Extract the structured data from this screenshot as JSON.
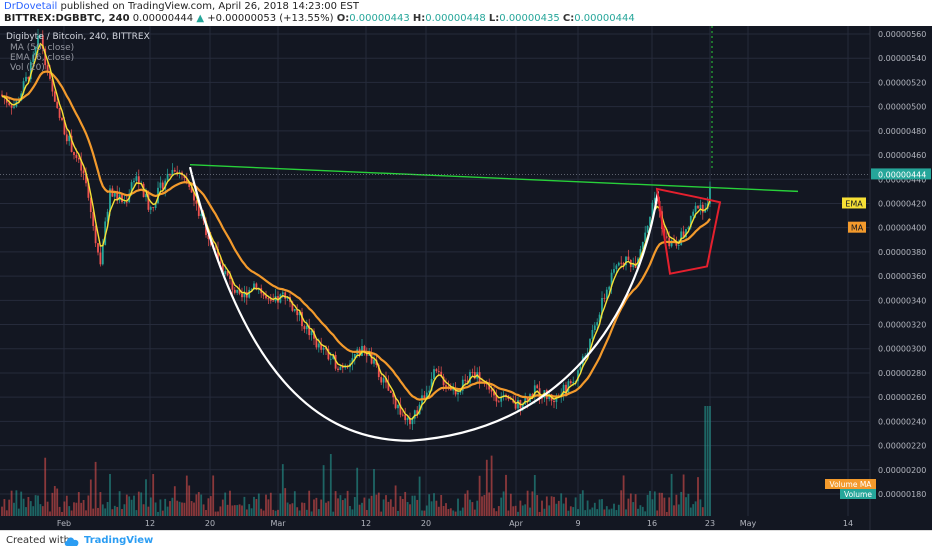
{
  "header": {
    "author": "DrDovetail",
    "published": "published on TradingView.com, April 26, 2018 14:23:00 EST",
    "symbol": "BITTREX:DGBBTC, 240",
    "last": "0.00000444",
    "change": "+0.00000053 (+13.55%)",
    "o_label": "O:",
    "o": "0.00000443",
    "h_label": "H:",
    "h": "0.00000448",
    "l_label": "L:",
    "l": "0.00000435",
    "c_label": "C:",
    "c": "0.00000444"
  },
  "legend": {
    "title": "Digibyte / Bitcoin, 240, BITTREX",
    "ma": "MA (50, close)",
    "ema": "EMA (6, close)",
    "vol": "Vol (20)"
  },
  "footer": {
    "created_with": "Created with",
    "brand": "TradingView"
  },
  "colors": {
    "background": "#131722",
    "grid": "#262b3b",
    "up": "#26a69a",
    "down": "#ef5350",
    "ema": "#f7e035",
    "ma": "#f39a2c",
    "trendline": "#28d13a",
    "cup": "#ffffff",
    "handle": "#e5202e"
  },
  "chart_data": {
    "type": "candlestick",
    "title": "Digibyte / Bitcoin, 240, BITTREX",
    "y_unit": "BTC",
    "ylim": [
      1.7e-06,
      5.7e-06
    ],
    "y_ticks": [
      "0.00000560",
      "0.00000540",
      "0.00000520",
      "0.00000500",
      "0.00000480",
      "0.00000460",
      "0.00000440",
      "0.00000420",
      "0.00000400",
      "0.00000380",
      "0.00000360",
      "0.00000340",
      "0.00000320",
      "0.00000300",
      "0.00000280",
      "0.00000260",
      "0.00000240",
      "0.00000220",
      "0.00000200",
      "0.00000180"
    ],
    "x_ticks": [
      "Feb",
      "12",
      "20",
      "Mar",
      "12",
      "20",
      "Apr",
      "9",
      "16",
      "23",
      "May",
      "14"
    ],
    "badges": [
      {
        "label": "EMA",
        "value": 4.2e-06
      },
      {
        "label": "MA",
        "value": 4e-06
      }
    ],
    "volume_badges": [
      "Volume MA",
      "Volume"
    ],
    "price_path": [
      [
        0,
        5.1e-06
      ],
      [
        15,
        5e-06
      ],
      [
        30,
        5.3e-06
      ],
      [
        40,
        5.6e-06
      ],
      [
        55,
        5e-06
      ],
      [
        70,
        4.7e-06
      ],
      [
        85,
        4.4e-06
      ],
      [
        100,
        3.7e-06
      ],
      [
        110,
        4.3e-06
      ],
      [
        125,
        4.2e-06
      ],
      [
        135,
        4.45e-06
      ],
      [
        150,
        4.15e-06
      ],
      [
        165,
        4.4e-06
      ],
      [
        175,
        4.5e-06
      ],
      [
        190,
        4.3e-06
      ],
      [
        205,
        4e-06
      ],
      [
        220,
        3.7e-06
      ],
      [
        240,
        3.4e-06
      ],
      [
        255,
        3.55e-06
      ],
      [
        270,
        3.35e-06
      ],
      [
        285,
        3.45e-06
      ],
      [
        300,
        3.25e-06
      ],
      [
        320,
        3e-06
      ],
      [
        340,
        2.85e-06
      ],
      [
        365,
        3e-06
      ],
      [
        385,
        2.7e-06
      ],
      [
        410,
        2.35e-06
      ],
      [
        420,
        2.55e-06
      ],
      [
        435,
        2.8e-06
      ],
      [
        455,
        2.65e-06
      ],
      [
        475,
        2.8e-06
      ],
      [
        495,
        2.62e-06
      ],
      [
        515,
        2.52e-06
      ],
      [
        535,
        2.65e-06
      ],
      [
        555,
        2.58e-06
      ],
      [
        575,
        2.75e-06
      ],
      [
        590,
        3.05e-06
      ],
      [
        605,
        3.45e-06
      ],
      [
        620,
        3.75e-06
      ],
      [
        635,
        3.7e-06
      ],
      [
        648,
        4.05e-06
      ],
      [
        656,
        4.28e-06
      ],
      [
        665,
        3.9e-06
      ],
      [
        675,
        3.85e-06
      ],
      [
        688,
        4e-06
      ],
      [
        698,
        4.2e-06
      ],
      [
        707,
        4.15e-06
      ],
      [
        712,
        4.4e-06
      ]
    ],
    "annotations": [
      {
        "type": "trendline",
        "from": [
          190,
          4.52e-06
        ],
        "to": [
          798,
          4.3e-06
        ]
      },
      {
        "type": "cup",
        "from": [
          190,
          4.5e-06
        ],
        "bottom": [
          410,
          2.24e-06
        ],
        "to": [
          658,
          4.3e-06
        ]
      },
      {
        "type": "handle",
        "points": [
          [
            657,
            4.32e-06
          ],
          [
            698,
            4.25e-06
          ],
          [
            720,
            4.21e-06
          ],
          [
            707,
            3.68e-06
          ],
          [
            670,
            3.62e-06
          ]
        ]
      }
    ],
    "last_price": 4.44e-06
  }
}
